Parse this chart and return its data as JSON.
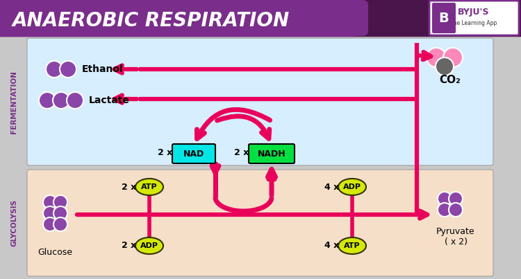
{
  "title": "ANAEROBIC RESPIRATION",
  "title_color": "#ffffff",
  "title_bg": "#7B2D8B",
  "bg_color": "#c8c8c8",
  "fermentation_bg": "#d6eeff",
  "glycolysis_bg": "#f5dfc8",
  "arrow_color": "#e8005a",
  "section_label_fermentation": "FERMENTATION",
  "section_label_glycolysis": "GLYCOLYSIS",
  "section_label_color": "#7B2D8B",
  "ethanol_label": "Ethanol",
  "lactate_label": "Lactate",
  "co2_label": "CO₂",
  "glucose_label": "Glucose",
  "pyruvate_label": "Pyruvate\n( x 2)",
  "nad_label": "NAD",
  "nadh_label": "NADH",
  "nad_color": "#00e5e5",
  "nadh_color": "#00e040",
  "atp_color": "#d4e800",
  "adp_color": "#d4e800",
  "mol_color": "#8B44A8",
  "pink_mol_color": "#ff88bb",
  "gray_mol_color": "#666666"
}
